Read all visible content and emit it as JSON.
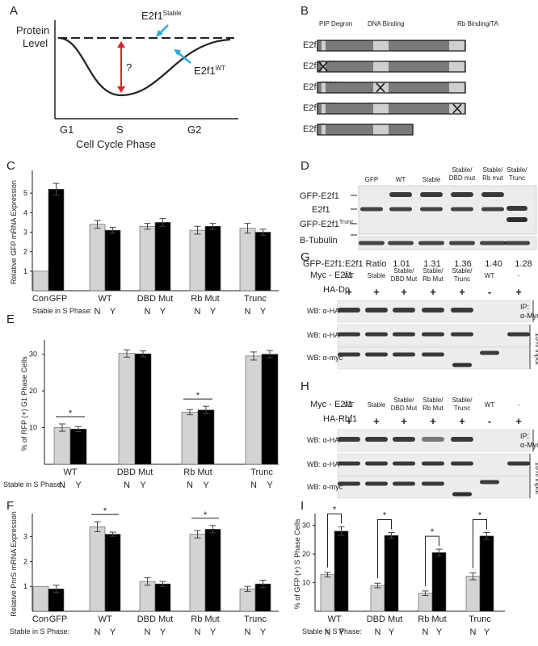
{
  "panel_letters": [
    "A",
    "B",
    "C",
    "D",
    "E",
    "F",
    "G",
    "H",
    "I"
  ],
  "panelA": {
    "ylabel_1": "Protein",
    "ylabel_2": "Level",
    "stable_label": "E2f1",
    "stable_sup": "Stable",
    "wt_label": "E2f1",
    "wt_sup": "WT",
    "question": "?",
    "phases": [
      "G1",
      "S",
      "G2"
    ],
    "xlabel": "Cell Cycle Phase",
    "colors": {
      "arrow_blue": "#29a9e1",
      "arrow_red": "#d7262b"
    }
  },
  "panelB": {
    "domain_labels": [
      "PIP Degron",
      "DNA Binding",
      "Rb Binding/TA"
    ],
    "constructs": [
      {
        "name": "E2f1",
        "sup": "",
        "mark": ""
      },
      {
        "name": "E2f1",
        "sup": "Stable",
        "mark": "pip"
      },
      {
        "name": "E2f1",
        "sup": "DBD Mut",
        "mark": "dbd"
      },
      {
        "name": "E2f1",
        "sup": "Rb Mut",
        "mark": "rb"
      },
      {
        "name": "E2f1",
        "sup": "Trunc",
        "mark": "trunc"
      }
    ],
    "colors": {
      "body": "#7a7a7a",
      "domain": "#cfcfcf"
    }
  },
  "panelC": {
    "ylabel": "Relative GFP mRNA Expression",
    "stable_label": "Stable in S Phase:",
    "chart_data": {
      "type": "bar",
      "categories": [
        "Con",
        "GFP",
        "WT",
        "DBD Mut",
        "Rb Mut",
        "Trunc"
      ],
      "ylim": [
        0,
        6
      ],
      "yticks": [
        "1",
        "2",
        "3",
        "4",
        "5"
      ],
      "nolabel": [
        "N",
        "Y"
      ],
      "groups": [
        {
          "label": "Con GFP",
          "bars": [
            {
              "value": 1.0,
              "err": 0,
              "fill": "light"
            },
            {
              "value": 5.2,
              "err": 0.3,
              "fill": "dark"
            }
          ],
          "ny": false
        },
        {
          "label": "WT",
          "bars": [
            {
              "value": 3.4,
              "err": 0.2,
              "fill": "light"
            },
            {
              "value": 3.1,
              "err": 0.15,
              "fill": "dark"
            }
          ],
          "ny": true
        },
        {
          "label": "DBD Mut",
          "bars": [
            {
              "value": 3.3,
              "err": 0.15,
              "fill": "light"
            },
            {
              "value": 3.5,
              "err": 0.2,
              "fill": "dark"
            }
          ],
          "ny": true
        },
        {
          "label": "Rb Mut",
          "bars": [
            {
              "value": 3.1,
              "err": 0.2,
              "fill": "light"
            },
            {
              "value": 3.3,
              "err": 0.15,
              "fill": "dark"
            }
          ],
          "ny": true
        },
        {
          "label": "Trunc",
          "bars": [
            {
              "value": 3.2,
              "err": 0.25,
              "fill": "light"
            },
            {
              "value": 3.0,
              "err": 0.15,
              "fill": "dark"
            }
          ],
          "ny": true
        }
      ]
    }
  },
  "panelD": {
    "lanes": [
      "GFP",
      "WT",
      "Stable",
      "Stable/\nDBD mut",
      "Stable/\nRb mut",
      "Stable/\nTrunc"
    ],
    "row_labels": [
      "GFP-E2f1",
      "E2f1",
      "GFP-E2f1",
      "B-Tubulin"
    ],
    "row_label_sup": "Trunc",
    "ratio_label": "GFP-E2f1:E2f1 Ratio",
    "ratios": [
      "1.01",
      "1.31",
      "1.36",
      "1.40",
      "1.28"
    ]
  },
  "panelE": {
    "ylabel": "% of RFP (+) G1 Phase Cells",
    "stable_label": "Stable in S Phase:",
    "chart_data": {
      "type": "bar",
      "categories": [
        "WT",
        "DBD Mut",
        "Rb Mut",
        "Trunc"
      ],
      "ylim": [
        0,
        33
      ],
      "yticks": [
        "10",
        "20",
        "30"
      ],
      "nolabel": [
        "N",
        "Y"
      ],
      "groups": [
        {
          "label": "WT",
          "bars": [
            {
              "value": 10.0,
              "err": 1.0,
              "fill": "light"
            },
            {
              "value": 9.6,
              "err": 0.7,
              "fill": "dark"
            }
          ],
          "ny": true,
          "star": true
        },
        {
          "label": "DBD Mut",
          "bars": [
            {
              "value": 30.2,
              "err": 1.0,
              "fill": "light"
            },
            {
              "value": 30.1,
              "err": 0.8,
              "fill": "dark"
            }
          ],
          "ny": true,
          "star": false
        },
        {
          "label": "Rb Mut",
          "bars": [
            {
              "value": 14.2,
              "err": 0.7,
              "fill": "light"
            },
            {
              "value": 14.8,
              "err": 1.0,
              "fill": "dark"
            }
          ],
          "ny": true,
          "star": true
        },
        {
          "label": "Trunc",
          "bars": [
            {
              "value": 29.5,
              "err": 1.1,
              "fill": "light"
            },
            {
              "value": 30.0,
              "err": 1.0,
              "fill": "dark"
            }
          ],
          "ny": true,
          "star": false
        }
      ],
      "star_text": "*"
    }
  },
  "panelF": {
    "ylabel": "Relative PnrS mRNA Expression",
    "stable_label": "Stable in S Phase:",
    "chart_data": {
      "type": "bar",
      "categories": [
        "Con",
        "GFP",
        "WT",
        "DBD Mut",
        "Rb Mut",
        "Trunc"
      ],
      "ylim": [
        0,
        3.8
      ],
      "yticks": [
        "1",
        "2",
        "3"
      ],
      "nolabel": [
        "N",
        "Y"
      ],
      "groups": [
        {
          "label": "Con GFP",
          "bars": [
            {
              "value": 1.0,
              "err": 0,
              "fill": "light"
            },
            {
              "value": 0.9,
              "err": 0.15,
              "fill": "dark"
            }
          ],
          "ny": false,
          "star": false
        },
        {
          "label": "WT",
          "bars": [
            {
              "value": 3.4,
              "err": 0.2,
              "fill": "light"
            },
            {
              "value": 3.1,
              "err": 0.08,
              "fill": "dark"
            }
          ],
          "ny": true,
          "star": true
        },
        {
          "label": "DBD Mut",
          "bars": [
            {
              "value": 1.2,
              "err": 0.15,
              "fill": "light"
            },
            {
              "value": 1.1,
              "err": 0.1,
              "fill": "dark"
            }
          ],
          "ny": true,
          "star": false
        },
        {
          "label": "Rb Mut",
          "bars": [
            {
              "value": 3.1,
              "err": 0.15,
              "fill": "light"
            },
            {
              "value": 3.3,
              "err": 0.15,
              "fill": "dark"
            }
          ],
          "ny": true,
          "star": true
        },
        {
          "label": "Trunc",
          "bars": [
            {
              "value": 0.9,
              "err": 0.1,
              "fill": "light"
            },
            {
              "value": 1.1,
              "err": 0.15,
              "fill": "dark"
            }
          ],
          "ny": true,
          "star": false
        }
      ],
      "star_text": "*"
    }
  },
  "panelG": {
    "title": "Myc - E2f1",
    "lanes": [
      "WT",
      "Stable",
      "Stable/\nDBD Mut",
      "Stable/\nRb Mut",
      "Stable/\nTrunc",
      "WT",
      "-"
    ],
    "tag": "HA-Dp",
    "plus_minus": [
      "+",
      "+",
      "+",
      "+",
      "+",
      "-",
      "+"
    ],
    "rows": [
      "WB: α-HA",
      "WB: α-HA",
      "WB: α-myc"
    ],
    "ip_label": "IP:",
    "ip_sub": "α-Myc",
    "input_label": "10% input"
  },
  "panelH": {
    "title": "Myc - E2f1",
    "lanes": [
      "WT",
      "Stable",
      "Stable/\nDBD Mut",
      "Stable/\nRb Mut",
      "Stable/\nTrunc",
      "WT",
      "-"
    ],
    "tag": "HA-Rbf1",
    "plus_minus": [
      "+",
      "+",
      "+",
      "+",
      "+",
      "-",
      "+"
    ],
    "rows": [
      "WB: α-HA",
      "WB: α-HA",
      "WB: α-myc"
    ],
    "ip_label": "IP:",
    "ip_sub": "α-Myc",
    "input_label": "10% input"
  },
  "panelI": {
    "ylabel": "% of GFP (+) S Phase Cells",
    "stable_label": "Stable in S Phase:",
    "chart_data": {
      "type": "bar",
      "categories": [
        "WT",
        "DBD Mut",
        "Rb Mut",
        "Trunc"
      ],
      "ylim": [
        0,
        33
      ],
      "yticks": [
        "10",
        "20",
        "30"
      ],
      "nolabel": [
        "N",
        "Y"
      ],
      "groups": [
        {
          "label": "WT",
          "bars": [
            {
              "value": 12.8,
              "err": 0.8,
              "fill": "light"
            },
            {
              "value": 28.0,
              "err": 1.5,
              "fill": "dark"
            }
          ],
          "ny": true,
          "star": true
        },
        {
          "label": "DBD Mut",
          "bars": [
            {
              "value": 9.0,
              "err": 0.8,
              "fill": "light"
            },
            {
              "value": 26.5,
              "err": 1.0,
              "fill": "dark"
            }
          ],
          "ny": true,
          "star": true
        },
        {
          "label": "Rb Mut",
          "bars": [
            {
              "value": 6.3,
              "err": 0.8,
              "fill": "light"
            },
            {
              "value": 20.5,
              "err": 1.2,
              "fill": "dark"
            }
          ],
          "ny": true,
          "star": true
        },
        {
          "label": "Trunc",
          "bars": [
            {
              "value": 12.2,
              "err": 1.2,
              "fill": "light"
            },
            {
              "value": 26.3,
              "err": 1.2,
              "fill": "dark"
            }
          ],
          "ny": true,
          "star": true
        }
      ],
      "star_text": "*"
    }
  }
}
